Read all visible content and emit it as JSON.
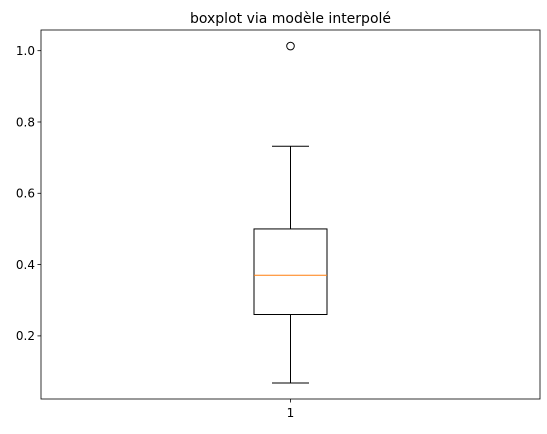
{
  "chart_data": {
    "type": "boxplot",
    "title": "boxplot via modèle interpolé",
    "xlabel": "",
    "ylabel": "",
    "categories": [
      "1"
    ],
    "boxes": [
      {
        "category": "1",
        "whisker_low": 0.068,
        "q1": 0.26,
        "median": 0.37,
        "q3": 0.5,
        "whisker_high": 0.732,
        "outliers": [
          1.013
        ]
      }
    ],
    "ylim": [
      0.023,
      1.058
    ],
    "yticks": [
      0.2,
      0.4,
      0.6,
      0.8,
      1.0
    ],
    "ytick_labels": [
      "0.2",
      "0.4",
      "0.6",
      "0.8",
      "1.0"
    ],
    "grid": false,
    "colors": {
      "box": "#000000",
      "median": "#ff7f0e",
      "outlier": "#000000"
    }
  }
}
